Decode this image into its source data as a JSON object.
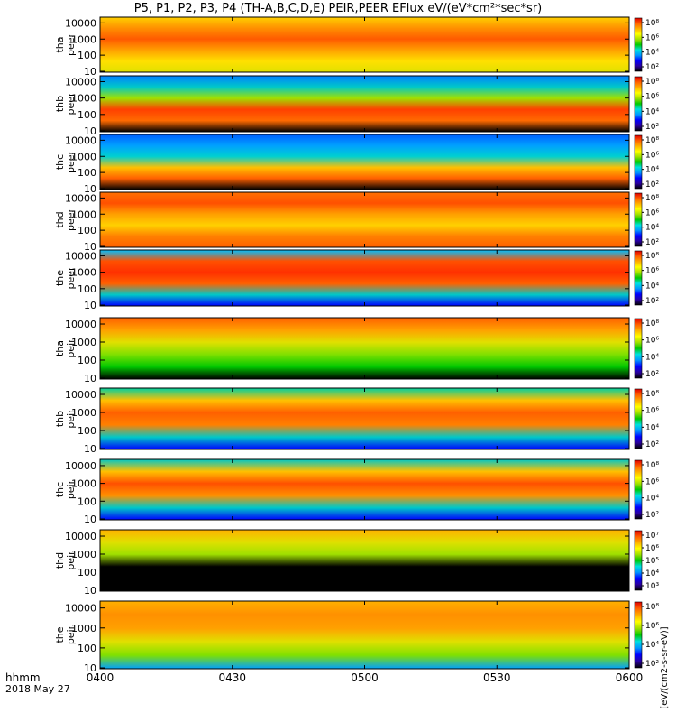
{
  "title": "P5, P1, P2, P3, P4 (TH-A,B,C,D,E) PEIR,PEER EFlux eV/(eV*cm²*sec*sr)",
  "time_axis": {
    "ticks": [
      "0400",
      "0430",
      "0500",
      "0530",
      "0600"
    ],
    "label_unit": "hhmm",
    "date": "2018 May 27"
  },
  "colorbar_label": "[eV/(cm2-s-sr-eV)]",
  "chart_data": [
    {
      "type": "heatmap",
      "ylabel": [
        "tha",
        "peer"
      ],
      "yticks": [
        "10000",
        "1000",
        "100",
        "10"
      ],
      "colorbar": [
        "10⁸",
        "10⁶",
        "10⁴",
        "10²"
      ],
      "xlim": [
        "0400",
        "0600"
      ],
      "ylim": [
        10,
        20000
      ],
      "yscale": "log"
    },
    {
      "type": "heatmap",
      "ylabel": [
        "thb",
        "peer"
      ],
      "yticks": [
        "10000",
        "1000",
        "100",
        "10"
      ],
      "colorbar": [
        "10⁸",
        "10⁶",
        "10⁴",
        "10²"
      ],
      "xlim": [
        "0400",
        "0600"
      ],
      "ylim": [
        10,
        20000
      ],
      "yscale": "log"
    },
    {
      "type": "heatmap",
      "ylabel": [
        "thc",
        "peer"
      ],
      "yticks": [
        "10000",
        "1000",
        "100",
        "10"
      ],
      "colorbar": [
        "10⁸",
        "10⁶",
        "10⁴",
        "10²"
      ],
      "xlim": [
        "0400",
        "0600"
      ],
      "ylim": [
        10,
        20000
      ],
      "yscale": "log"
    },
    {
      "type": "heatmap",
      "ylabel": [
        "thd",
        "peer"
      ],
      "yticks": [
        "10000",
        "1000",
        "100",
        "10"
      ],
      "colorbar": [
        "10⁸",
        "10⁶",
        "10⁴",
        "10²"
      ],
      "xlim": [
        "0400",
        "0600"
      ],
      "ylim": [
        10,
        20000
      ],
      "yscale": "log"
    },
    {
      "type": "heatmap",
      "ylabel": [
        "the",
        "peer"
      ],
      "yticks": [
        "10000",
        "1000",
        "100",
        "10"
      ],
      "colorbar": [
        "10⁸",
        "10⁶",
        "10⁴",
        "10²"
      ],
      "xlim": [
        "0400",
        "0600"
      ],
      "ylim": [
        10,
        20000
      ],
      "yscale": "log"
    },
    {
      "type": "heatmap",
      "ylabel": [
        "tha",
        "peir"
      ],
      "yticks": [
        "10000",
        "1000",
        "100",
        "10"
      ],
      "colorbar": [
        "10⁸",
        "10⁶",
        "10⁴",
        "10²"
      ],
      "xlim": [
        "0400",
        "0600"
      ],
      "ylim": [
        10,
        20000
      ],
      "yscale": "log"
    },
    {
      "type": "heatmap",
      "ylabel": [
        "thb",
        "peir"
      ],
      "yticks": [
        "10000",
        "1000",
        "100",
        "10"
      ],
      "colorbar": [
        "10⁸",
        "10⁶",
        "10⁴",
        "10²"
      ],
      "xlim": [
        "0400",
        "0600"
      ],
      "ylim": [
        10,
        20000
      ],
      "yscale": "log"
    },
    {
      "type": "heatmap",
      "ylabel": [
        "thc",
        "peir"
      ],
      "yticks": [
        "10000",
        "1000",
        "100",
        "10"
      ],
      "colorbar": [
        "10⁸",
        "10⁶",
        "10⁴",
        "10²"
      ],
      "xlim": [
        "0400",
        "0600"
      ],
      "ylim": [
        10,
        20000
      ],
      "yscale": "log"
    },
    {
      "type": "heatmap",
      "ylabel": [
        "thd",
        "peir"
      ],
      "yticks": [
        "10000",
        "1000",
        "100",
        "10"
      ],
      "colorbar": [
        "10⁷",
        "10⁶",
        "10⁵",
        "10⁴",
        "10³"
      ],
      "xlim": [
        "0400",
        "0600"
      ],
      "ylim": [
        10,
        20000
      ],
      "yscale": "log"
    },
    {
      "type": "heatmap",
      "ylabel": [
        "the",
        "peir"
      ],
      "yticks": [
        "10000",
        "1000",
        "100",
        "10"
      ],
      "colorbar": [
        "10⁸",
        "10⁶",
        "10⁴",
        "10²"
      ],
      "xlim": [
        "0400",
        "0600"
      ],
      "ylim": [
        10,
        20000
      ],
      "yscale": "log"
    }
  ],
  "colors": {
    "spectrogram": [
      "#000000",
      "#2a00a0",
      "#0000ff",
      "#0096ff",
      "#00e0e0",
      "#00c800",
      "#a0e000",
      "#ffff00",
      "#ffb000",
      "#ff6000",
      "#e00000"
    ]
  }
}
